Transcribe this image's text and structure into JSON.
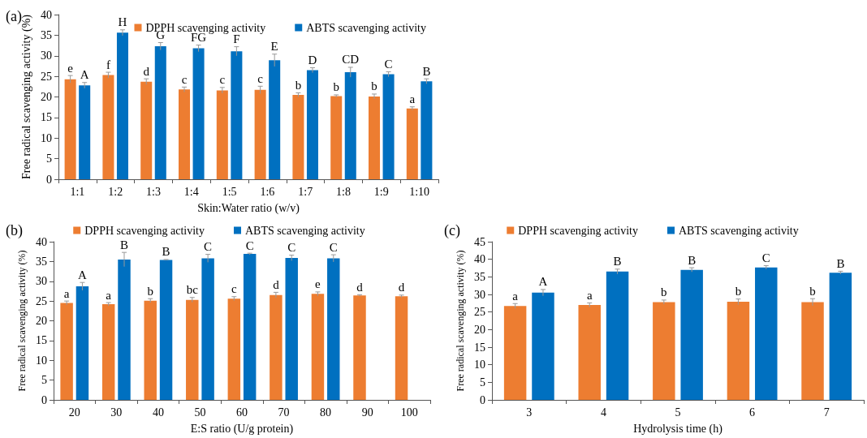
{
  "chart_data": [
    {
      "type": "bar",
      "title": "(a)",
      "xlabel": "Skin:Water ratio (w/v)",
      "ylabel": "Free radical scavenging activity (%)",
      "categories": [
        "1:1",
        "1:2",
        "1:3",
        "1:4",
        "1:5",
        "1:6",
        "1:7",
        "1:8",
        "1:9",
        "1:10"
      ],
      "series": [
        {
          "name": "DPPH scavenging activity",
          "color": "#ed7d31",
          "values": [
            24.3,
            25.3,
            23.7,
            21.8,
            21.6,
            21.7,
            20.5,
            20.2,
            20.1,
            17.2
          ],
          "errors": [
            0.9,
            0.7,
            0.7,
            0.6,
            0.7,
            0.9,
            0.5,
            0.3,
            0.6,
            0.4
          ],
          "value_labels": [
            "e",
            "f",
            "d",
            "c",
            "c",
            "c",
            "b",
            "b",
            "b",
            "a"
          ]
        },
        {
          "name": "ABTS scavenging activity",
          "color": "#0070c0",
          "values": [
            22.8,
            35.6,
            32.3,
            31.8,
            31.1,
            28.9,
            26.5,
            26.0,
            25.5,
            23.8
          ],
          "errors": [
            0.7,
            0.7,
            0.9,
            0.8,
            1.1,
            1.5,
            0.6,
            1.2,
            0.6,
            0.6
          ],
          "value_labels": [
            "A",
            "H",
            "G",
            "FG",
            "F",
            "E",
            "D",
            "CD",
            "C",
            "B"
          ]
        }
      ],
      "ylim": [
        0,
        40
      ],
      "yticks": [
        0,
        5,
        10,
        15,
        20,
        25,
        30,
        35,
        40
      ],
      "legend": "top right"
    },
    {
      "type": "bar",
      "title": "(b)",
      "xlabel": "E:S ratio (U/g protein)",
      "ylabel": "Free radical scavenging activity (%)",
      "categories": [
        "20",
        "30",
        "40",
        "50",
        "60",
        "70",
        "80",
        "90",
        "100"
      ],
      "series": [
        {
          "name": "DPPH scavenging activity",
          "color": "#ed7d31",
          "values": [
            24.5,
            24.2,
            25.1,
            25.3,
            25.6,
            26.5,
            26.8,
            26.4,
            26.2
          ],
          "errors": [
            0.5,
            0.4,
            0.5,
            0.6,
            0.5,
            0.7,
            0.5,
            0.2,
            0.3
          ],
          "value_labels": [
            "a",
            "a",
            "b",
            "bc",
            "c",
            "d",
            "e",
            "d",
            "d"
          ]
        },
        {
          "name": "ABTS scavenging activity",
          "color": "#0070c0",
          "values": [
            28.7,
            35.5,
            35.4,
            35.8,
            36.9,
            35.9,
            35.8,
            null,
            null
          ],
          "errors": [
            1.0,
            1.8,
            0.1,
            1.0,
            0.2,
            0.7,
            0.9,
            null,
            null
          ],
          "value_labels": [
            "A",
            "B",
            "B",
            "C",
            "C",
            "C",
            "C",
            null,
            null
          ]
        }
      ],
      "ylim": [
        0,
        40
      ],
      "yticks": [
        0,
        5,
        10,
        15,
        20,
        25,
        30,
        35,
        40
      ],
      "legend": "top"
    },
    {
      "type": "bar",
      "title": "(c)",
      "xlabel": "Hydrolysis time (h)",
      "ylabel": "Free radical scavenging activity (%)",
      "categories": [
        "3",
        "4",
        "5",
        "6",
        "7"
      ],
      "series": [
        {
          "name": "DPPH scavenging activity",
          "color": "#ed7d31",
          "values": [
            26.7,
            27.0,
            27.8,
            27.9,
            27.8
          ],
          "errors": [
            0.7,
            0.6,
            0.6,
            0.8,
            1.0
          ],
          "value_labels": [
            "a",
            "a",
            "b",
            "b",
            "b"
          ]
        },
        {
          "name": "ABTS scavenging activity",
          "color": "#0070c0",
          "values": [
            30.5,
            36.5,
            37.0,
            37.7,
            36.2
          ],
          "errors": [
            0.9,
            0.7,
            0.6,
            0.5,
            0.4
          ],
          "value_labels": [
            "A",
            "B",
            "B",
            "C",
            "B"
          ]
        }
      ],
      "ylim": [
        0,
        45
      ],
      "yticks": [
        0,
        5,
        10,
        15,
        20,
        25,
        30,
        35,
        40,
        45
      ],
      "legend": "top"
    }
  ]
}
